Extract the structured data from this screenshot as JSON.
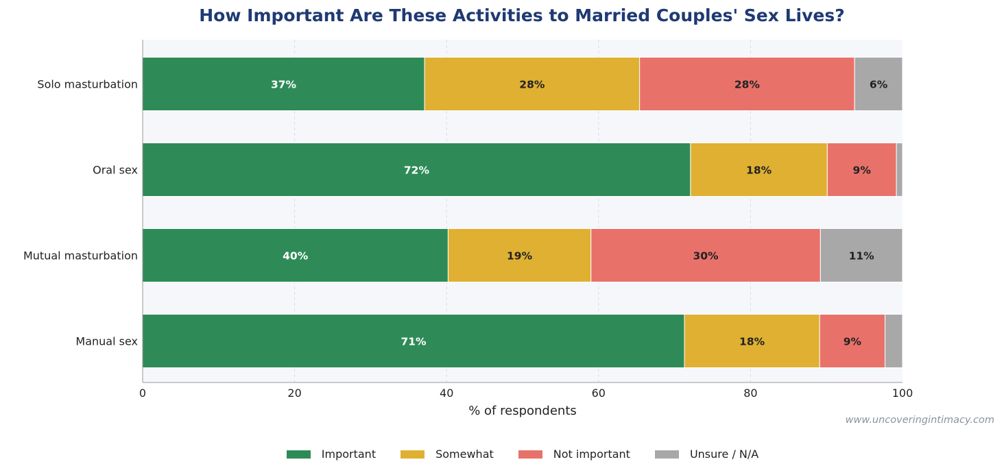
{
  "chart_data": {
    "type": "bar",
    "orientation": "horizontal",
    "stacked": true,
    "title": "How Important Are These Activities to Married Couples' Sex Lives?",
    "xlabel": "% of respondents",
    "ylabel": "",
    "xlim": [
      0,
      100
    ],
    "xticks": [
      0,
      20,
      40,
      60,
      80,
      100
    ],
    "grid": true,
    "legend_position": "bottom",
    "categories": [
      "Solo masturbation",
      "Oral sex",
      "Mutual masturbation",
      "Manual sex"
    ],
    "series": [
      {
        "name": "Important",
        "color": "#2e8b57",
        "values": [
          37.1,
          72.1,
          40.2,
          71.3
        ],
        "labels": [
          "37%",
          "72%",
          "40%",
          "71%"
        ],
        "label_color": "#ffffff"
      },
      {
        "name": "Somewhat",
        "color": "#e0b032",
        "values": [
          28.3,
          18.0,
          18.8,
          17.8
        ],
        "labels": [
          "28%",
          "18%",
          "19%",
          "18%"
        ],
        "label_color": "#222222"
      },
      {
        "name": "Not important",
        "color": "#e8726a",
        "values": [
          28.3,
          9.1,
          30.2,
          8.6
        ],
        "labels": [
          "28%",
          "9%",
          "30%",
          "9%"
        ],
        "label_color": "#222222"
      },
      {
        "name": "Unsure / N/A",
        "color": "#a8a8a8",
        "values": [
          6.3,
          0.8,
          10.8,
          2.3
        ],
        "labels": [
          "6%",
          "",
          "11%",
          ""
        ],
        "label_color": "#222222"
      }
    ],
    "source_note": "www.uncoveringintimacy.com"
  },
  "colors": {
    "title": "#1f3a73",
    "plot_background": "#f5f7fb",
    "grid": "#d8dce4",
    "axis": "#9a9a9a",
    "watermark": "#8a92a0"
  }
}
